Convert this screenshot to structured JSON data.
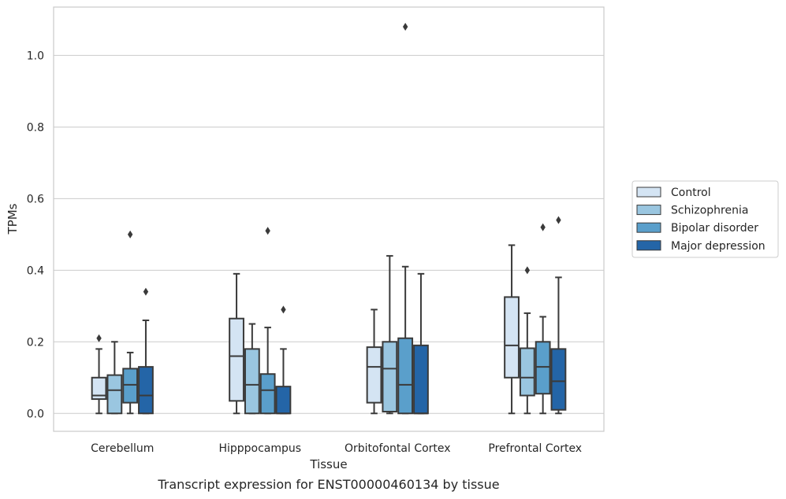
{
  "caption": "Transcript expression for ENST00000460134 by tissue",
  "chart_data": {
    "type": "box",
    "xlabel": "Tissue",
    "ylabel": "TPMs",
    "ylim": [
      -0.05,
      1.135
    ],
    "yticks": [
      0.0,
      0.2,
      0.4,
      0.6,
      0.8,
      1.0
    ],
    "ytick_labels": [
      "0.0",
      "0.2",
      "0.4",
      "0.6",
      "0.8",
      "1.0"
    ],
    "grid": "horizontal",
    "legend_position": "right, outside plot",
    "categories": [
      "Cerebellum",
      "Hipppocampus",
      "Orbitofontal Cortex",
      "Prefrontal Cortex"
    ],
    "series": [
      {
        "name": "Control",
        "color": "#d4e4f3",
        "boxes": [
          {
            "whislo": 0.0,
            "q1": 0.04,
            "med": 0.05,
            "q3": 0.1,
            "whishi": 0.18,
            "fliers": [
              0.21
            ]
          },
          {
            "whislo": 0.0,
            "q1": 0.035,
            "med": 0.16,
            "q3": 0.265,
            "whishi": 0.39,
            "fliers": []
          },
          {
            "whislo": 0.0,
            "q1": 0.03,
            "med": 0.13,
            "q3": 0.185,
            "whishi": 0.29,
            "fliers": []
          },
          {
            "whislo": 0.0,
            "q1": 0.1,
            "med": 0.19,
            "q3": 0.325,
            "whishi": 0.47,
            "fliers": []
          }
        ]
      },
      {
        "name": "Schizophrenia",
        "color": "#9ac6e0",
        "boxes": [
          {
            "whislo": 0.0,
            "q1": 0.0,
            "med": 0.065,
            "q3": 0.107,
            "whishi": 0.2,
            "fliers": []
          },
          {
            "whislo": 0.0,
            "q1": 0.0,
            "med": 0.08,
            "q3": 0.18,
            "whishi": 0.25,
            "fliers": []
          },
          {
            "whislo": 0.0,
            "q1": 0.005,
            "med": 0.125,
            "q3": 0.2,
            "whishi": 0.44,
            "fliers": []
          },
          {
            "whislo": 0.0,
            "q1": 0.05,
            "med": 0.1,
            "q3": 0.182,
            "whishi": 0.28,
            "fliers": [
              0.4
            ]
          }
        ]
      },
      {
        "name": "Bipolar disorder",
        "color": "#5a9fcb",
        "boxes": [
          {
            "whislo": 0.0,
            "q1": 0.03,
            "med": 0.08,
            "q3": 0.125,
            "whishi": 0.17,
            "fliers": [
              0.5
            ]
          },
          {
            "whislo": 0.0,
            "q1": 0.0,
            "med": 0.065,
            "q3": 0.11,
            "whishi": 0.24,
            "fliers": [
              0.51
            ]
          },
          {
            "whislo": 0.0,
            "q1": 0.0,
            "med": 0.08,
            "q3": 0.21,
            "whishi": 0.41,
            "fliers": [
              1.08
            ]
          },
          {
            "whislo": 0.0,
            "q1": 0.055,
            "med": 0.13,
            "q3": 0.2,
            "whishi": 0.27,
            "fliers": [
              0.52
            ]
          }
        ]
      },
      {
        "name": "Major depression",
        "color": "#2465a7",
        "boxes": [
          {
            "whislo": 0.0,
            "q1": 0.0,
            "med": 0.05,
            "q3": 0.13,
            "whishi": 0.26,
            "fliers": [
              0.34
            ]
          },
          {
            "whislo": 0.0,
            "q1": 0.0,
            "med": 0.0,
            "q3": 0.075,
            "whishi": 0.18,
            "fliers": [
              0.29
            ]
          },
          {
            "whislo": 0.0,
            "q1": 0.0,
            "med": 0.0,
            "q3": 0.19,
            "whishi": 0.39,
            "fliers": []
          },
          {
            "whislo": 0.0,
            "q1": 0.01,
            "med": 0.09,
            "q3": 0.18,
            "whishi": 0.38,
            "fliers": [
              0.54
            ]
          }
        ]
      }
    ]
  }
}
